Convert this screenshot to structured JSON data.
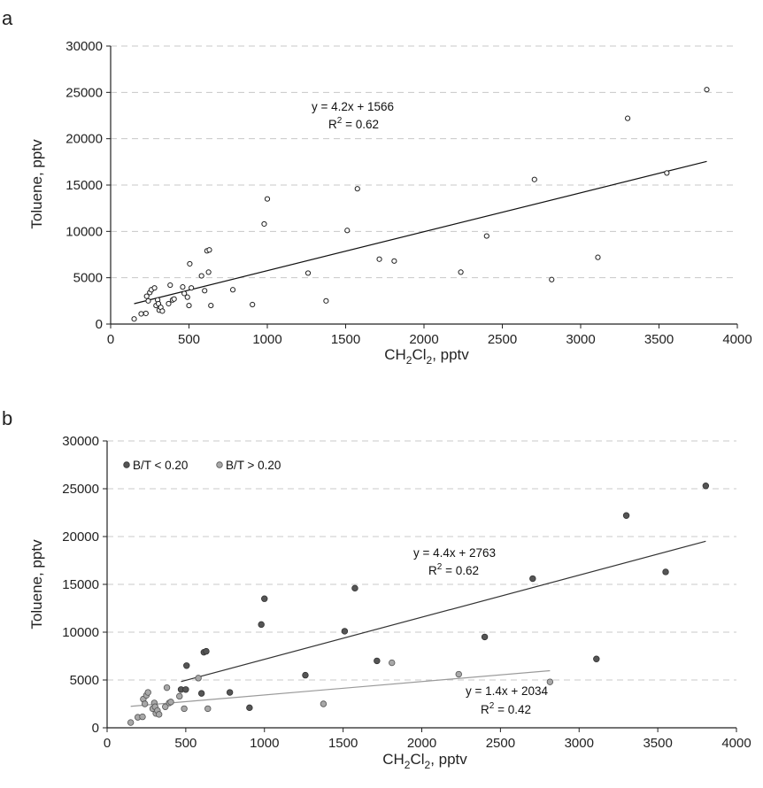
{
  "chart_data": [
    {
      "panel": "a",
      "type": "scatter",
      "xlabel": "CH2Cl2, pptv",
      "xlabel_parts": {
        "a": "CH",
        "b": "2",
        "c": "Cl",
        "d": "2",
        "e": ", pptv"
      },
      "ylabel": "Toluene, pptv",
      "xlim": [
        0,
        4000
      ],
      "ylim": [
        0,
        30000
      ],
      "xticks": [
        0,
        500,
        1000,
        1500,
        2000,
        2500,
        3000,
        3500,
        4000
      ],
      "yticks": [
        0,
        5000,
        10000,
        15000,
        20000,
        25000,
        30000
      ],
      "grid": "horizontal dashed",
      "series": [
        {
          "marker": "open-circle",
          "color": "#222222",
          "x": [
            150,
            195,
            225,
            230,
            240,
            250,
            260,
            280,
            290,
            300,
            305,
            310,
            320,
            330,
            370,
            380,
            395,
            405,
            460,
            470,
            490,
            500,
            505,
            515,
            580,
            600,
            615,
            625,
            630,
            640,
            780,
            905,
            980,
            1000,
            1260,
            1375,
            1510,
            1575,
            1715,
            1810,
            2235,
            2400,
            2705,
            2815,
            3110,
            3300,
            3550,
            3805
          ],
          "y": [
            550,
            1100,
            1150,
            3000,
            2500,
            3400,
            3700,
            3900,
            2000,
            2600,
            2200,
            1500,
            1800,
            1400,
            2200,
            4200,
            2600,
            2700,
            4000,
            3300,
            2900,
            2000,
            6500,
            3900,
            5200,
            3600,
            7900,
            5600,
            8000,
            2000,
            3700,
            2100,
            10800,
            13500,
            5500,
            2500,
            10100,
            14600,
            7000,
            6800,
            5600,
            9500,
            15600,
            4800,
            7200,
            22200,
            16300,
            25300
          ]
        }
      ],
      "trendlines": [
        {
          "slope": 4.2,
          "intercept": 1566,
          "x_range": [
            150,
            3805
          ],
          "color": "#111111",
          "equation": "y = 4.2x + 1566",
          "r2_prefix": "R",
          "r2_sup": "2",
          "r2_suffix": " = 0.62"
        }
      ]
    },
    {
      "panel": "b",
      "type": "scatter",
      "xlabel": "CH2Cl2, pptv",
      "xlabel_parts": {
        "a": "CH",
        "b": "2",
        "c": "Cl",
        "d": "2",
        "e": ", pptv"
      },
      "ylabel": "Toluene, pptv",
      "xlim": [
        0,
        4000
      ],
      "ylim": [
        0,
        30000
      ],
      "xticks": [
        0,
        500,
        1000,
        1500,
        2000,
        2500,
        3000,
        3500,
        4000
      ],
      "yticks": [
        0,
        5000,
        10000,
        15000,
        20000,
        25000,
        30000
      ],
      "grid": "horizontal dashed",
      "legend_position": "top-left",
      "series": [
        {
          "name": "B/T < 0.20",
          "marker": "filled-circle",
          "color": "#555555",
          "x": [
            470,
            500,
            505,
            600,
            615,
            630,
            780,
            905,
            980,
            1000,
            1260,
            1510,
            1575,
            1715,
            2400,
            2705,
            3110,
            3300,
            3550,
            3805
          ],
          "y": [
            4000,
            4000,
            6500,
            3600,
            7900,
            8000,
            3700,
            2100,
            10800,
            13500,
            5500,
            10100,
            14600,
            7000,
            9500,
            15600,
            7200,
            22200,
            16300,
            25300
          ]
        },
        {
          "name": "B/T > 0.20",
          "marker": "filled-circle",
          "color": "#a8a8a8",
          "x": [
            150,
            195,
            225,
            230,
            240,
            250,
            260,
            290,
            300,
            305,
            310,
            320,
            330,
            370,
            380,
            395,
            405,
            460,
            490,
            580,
            640,
            1375,
            1810,
            2235,
            2815
          ],
          "y": [
            550,
            1100,
            1150,
            3000,
            2500,
            3400,
            3700,
            2000,
            2600,
            2200,
            1500,
            1800,
            1400,
            2200,
            4200,
            2600,
            2700,
            3300,
            2000,
            5200,
            2000,
            2500,
            6800,
            5600,
            4800
          ]
        }
      ],
      "trendlines": [
        {
          "slope": 4.4,
          "intercept": 2763,
          "x_range": [
            470,
            3805
          ],
          "color": "#333333",
          "equation": "y = 4.4x + 2763",
          "r2_prefix": "R",
          "r2_sup": "2",
          "r2_suffix": " = 0.62"
        },
        {
          "slope": 1.4,
          "intercept": 2034,
          "x_range": [
            150,
            2815
          ],
          "color": "#9a9a9a",
          "equation": "y = 1.4x + 2034",
          "r2_prefix": "R",
          "r2_sup": "2",
          "r2_suffix": " = 0.42"
        }
      ]
    }
  ]
}
